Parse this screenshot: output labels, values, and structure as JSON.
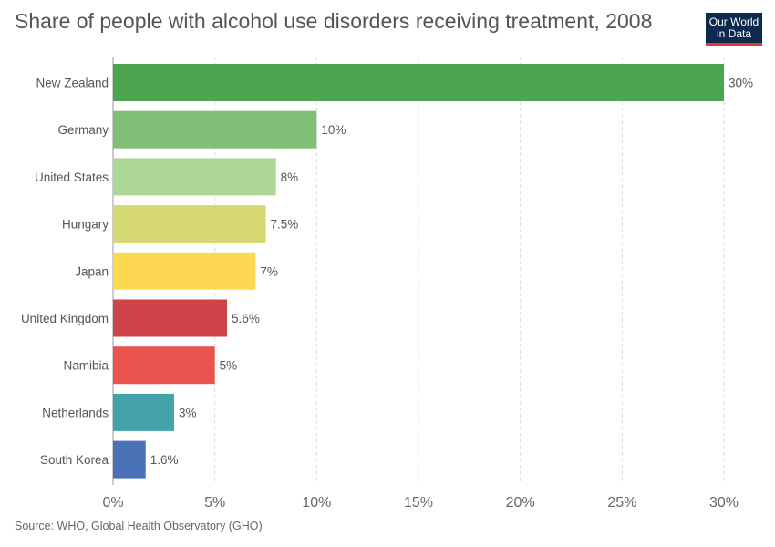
{
  "header": {
    "title": "Share of people with alcohol use disorders receiving treatment, 2008",
    "logo_line1": "Our World",
    "logo_line2": "in Data"
  },
  "footer": {
    "source": "Source: WHO, Global Health Observatory (GHO)"
  },
  "chart_data": {
    "type": "bar",
    "orientation": "horizontal",
    "title": "Share of people with alcohol use disorders receiving treatment, 2008",
    "categories": [
      "New Zealand",
      "Germany",
      "United States",
      "Hungary",
      "Japan",
      "United Kingdom",
      "Namibia",
      "Netherlands",
      "South Korea"
    ],
    "values": [
      30,
      10,
      8,
      7.5,
      7,
      5.6,
      5,
      3,
      1.6
    ],
    "value_labels": [
      "30%",
      "10%",
      "8%",
      "7.5%",
      "7%",
      "5.6%",
      "5%",
      "3%",
      "1.6%"
    ],
    "colors": [
      "#43a047",
      "#7aba6f",
      "#a9d591",
      "#d3d56c",
      "#fdd649",
      "#cc3a3f",
      "#e94a45",
      "#3a9ea5",
      "#4069b2"
    ],
    "xlim": [
      0,
      30
    ],
    "xticks": [
      0,
      5,
      10,
      15,
      20,
      25,
      30
    ],
    "xtick_labels": [
      "0%",
      "5%",
      "10%",
      "15%",
      "20%",
      "25%",
      "30%"
    ],
    "grid": "vertical-dashed",
    "xlabel": "",
    "ylabel": ""
  }
}
